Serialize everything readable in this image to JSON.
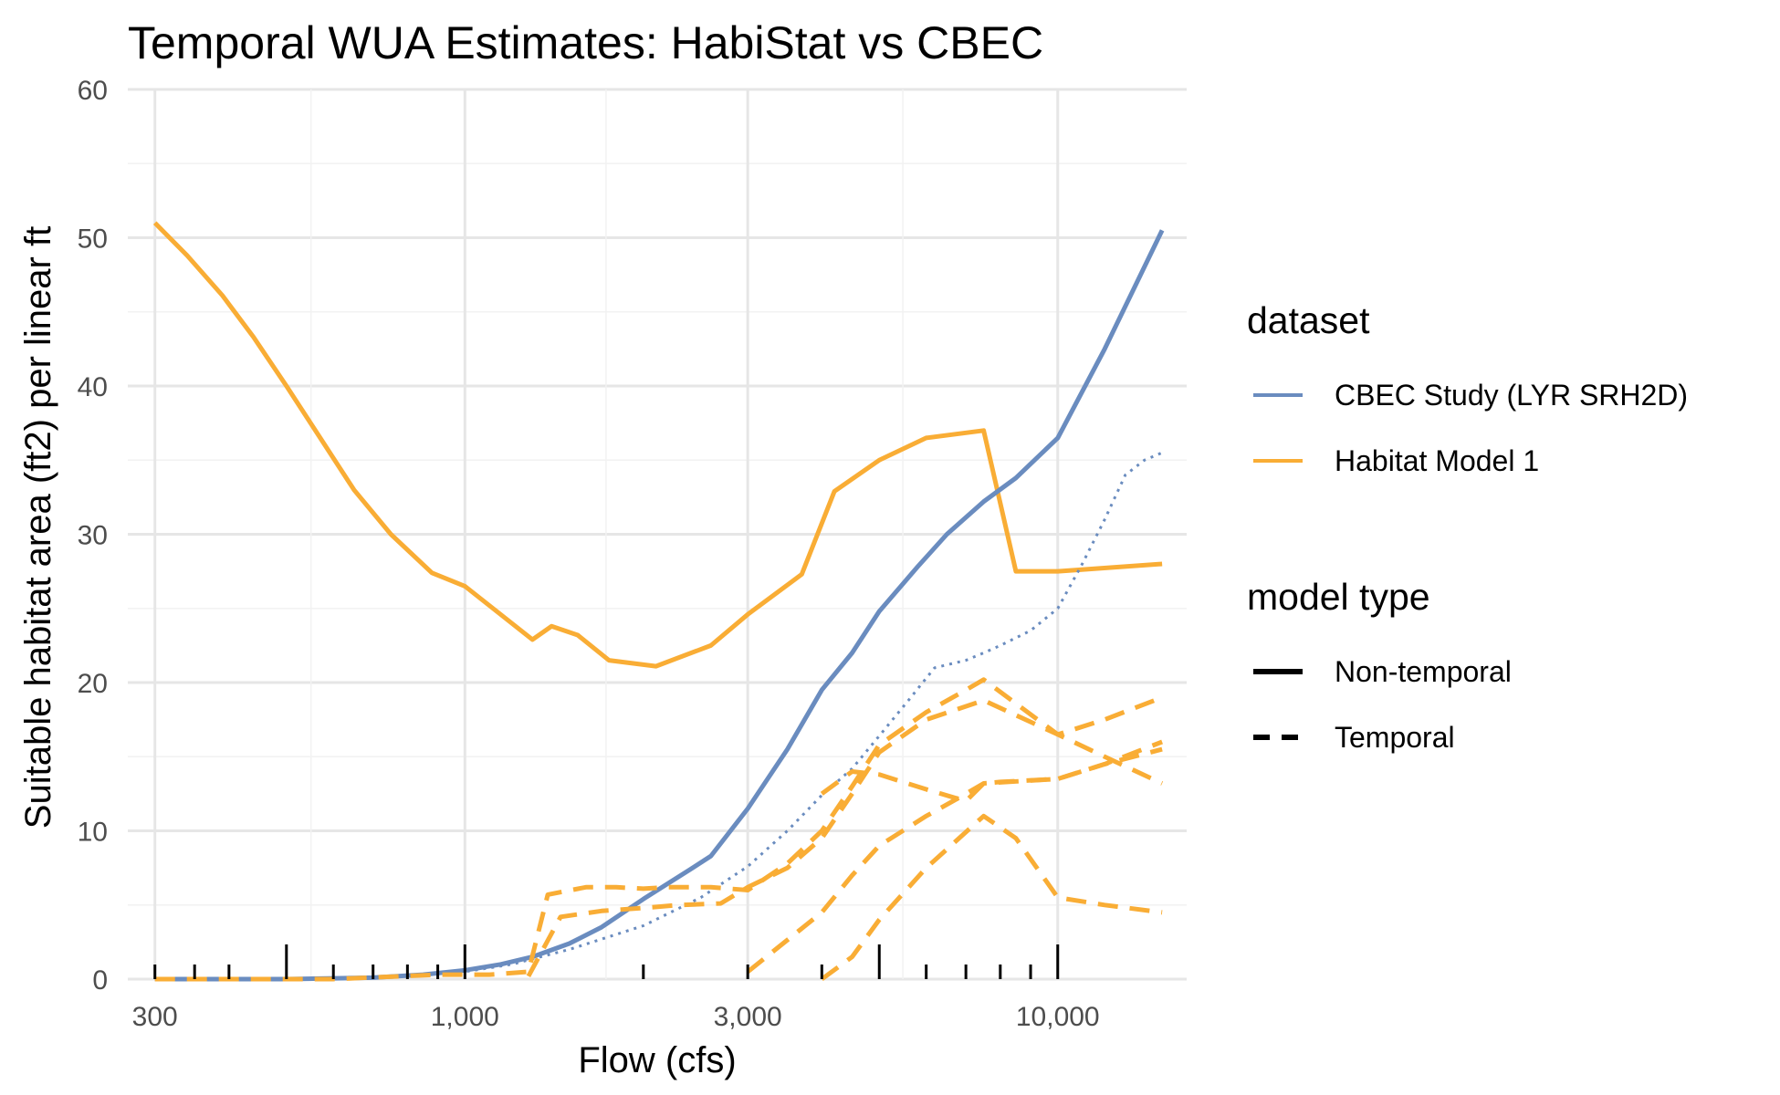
{
  "chart_data": {
    "type": "line",
    "title": "Temporal WUA Estimates: HabiStat vs CBEC",
    "xlabel": "Flow (cfs)",
    "ylabel": "Suitable habitat area (ft2) per linear ft",
    "x_scale": "log10",
    "xlim": [
      270,
      16500
    ],
    "ylim": [
      0,
      60
    ],
    "x_ticks": [
      300,
      1000,
      3000,
      10000
    ],
    "x_tick_labels": [
      "300",
      "1,000",
      "3,000",
      "10,000"
    ],
    "y_ticks": [
      0,
      10,
      20,
      30,
      40,
      50,
      60
    ],
    "y_tick_labels": [
      "0",
      "10",
      "20",
      "30",
      "40",
      "50",
      "60"
    ],
    "grid": true,
    "legend_position": "right",
    "legend": {
      "dataset_title": "dataset",
      "dataset_items": [
        {
          "label": "CBEC Study (LYR SRH2D)",
          "color": "#6a8cbf"
        },
        {
          "label": "Habitat Model 1",
          "color": "#f9ad35"
        }
      ],
      "modeltype_title": "model type",
      "modeltype_items": [
        {
          "label": "Non-temporal",
          "dash": "solid"
        },
        {
          "label": "Temporal",
          "dash": "dashed"
        }
      ]
    },
    "colors": {
      "cbec": "#6a8cbf",
      "habitat": "#f9ad35",
      "rug": "#000000"
    },
    "series": [
      {
        "name": "Habitat Model 1",
        "model_type": "Non-temporal",
        "color": "#f9ad35",
        "x": [
          300,
          340,
          390,
          440,
          500,
          570,
          650,
          750,
          880,
          1000,
          1300,
          1400,
          1550,
          1750,
          2100,
          2600,
          3000,
          3700,
          4200,
          5000,
          6000,
          7500,
          8500,
          10000,
          15000
        ],
        "y": [
          51,
          48.8,
          46.1,
          43.3,
          40,
          36.5,
          33,
          30,
          27.4,
          26.5,
          22.9,
          23.8,
          23.2,
          21.5,
          21.1,
          22.5,
          24.6,
          27.3,
          32.9,
          35,
          36.5,
          37,
          27.5,
          27.5,
          28
        ]
      },
      {
        "name": "CBEC Study (LYR SRH2D)",
        "model_type": "Non-temporal",
        "color": "#6a8cbf",
        "x": [
          300,
          500,
          700,
          850,
          1000,
          1150,
          1300,
          1500,
          1700,
          2000,
          2400,
          2600,
          3000,
          3500,
          4000,
          4500,
          5000,
          5800,
          6500,
          7500,
          8500,
          10000,
          12000,
          15000
        ],
        "y": [
          0,
          0,
          0.1,
          0.3,
          0.6,
          1,
          1.5,
          2.4,
          3.5,
          5.4,
          7.4,
          8.3,
          11.5,
          15.5,
          19.5,
          22,
          24.8,
          27.8,
          30,
          32.2,
          33.8,
          36.5,
          42.5,
          50.5
        ]
      },
      {
        "name": "CBEC Study (LYR SRH2D)",
        "model_type": "Temporal",
        "color": "#6a8cbf",
        "x": [
          500,
          800,
          1000,
          1200,
          1500,
          2000,
          2500,
          3000,
          3500,
          4000,
          4500,
          5000,
          5600,
          6200,
          7000,
          7500,
          8000,
          9000,
          10000,
          11000,
          12000,
          13000,
          14000,
          15000
        ],
        "y": [
          0,
          0.2,
          0.5,
          1,
          2,
          3.6,
          5.5,
          7.6,
          10,
          12.4,
          14.2,
          16.4,
          18.8,
          21,
          21.5,
          22,
          22.5,
          23.5,
          25,
          28,
          31,
          34,
          35,
          35.5
        ]
      },
      {
        "name": "Habitat Model 1",
        "model_type": "Temporal",
        "color": "#f9ad35",
        "x": [
          300,
          600,
          900,
          1100,
          1280,
          1380,
          1600,
          1800,
          2000,
          2200,
          2600,
          3000,
          3500,
          4000,
          4500,
          5000,
          6000,
          7000,
          7500,
          10000,
          12000,
          15000
        ],
        "y": [
          0,
          0,
          0.3,
          0.3,
          0.5,
          5.7,
          6.2,
          6.2,
          6.1,
          6.2,
          6.2,
          6,
          7.8,
          10,
          13,
          15.8,
          18,
          19.5,
          20.2,
          16.5,
          17.5,
          19
        ]
      },
      {
        "name": "Habitat Model 1",
        "model_type": "Temporal",
        "color": "#f9ad35",
        "x": [
          1280,
          1450,
          1700,
          2000,
          2300,
          2700,
          3000,
          3500,
          4000,
          4500,
          5000,
          6000,
          7500,
          10000,
          12000,
          15000
        ],
        "y": [
          0.2,
          4.2,
          4.6,
          4.8,
          5,
          5.1,
          6.2,
          7.5,
          9.5,
          12.5,
          15.3,
          17.5,
          18.8,
          16.5,
          15,
          13.2
        ]
      },
      {
        "name": "Habitat Model 1",
        "model_type": "Temporal",
        "color": "#f9ad35",
        "x": [
          3000,
          4000,
          4500,
          5000,
          6000,
          7000,
          7500,
          10000,
          12000,
          15000
        ],
        "y": [
          0.5,
          4.5,
          7,
          9,
          11,
          12.5,
          13.2,
          13.5,
          14.5,
          16
        ]
      },
      {
        "name": "Habitat Model 1",
        "model_type": "Temporal",
        "color": "#f9ad35",
        "x": [
          4000,
          4500,
          5000,
          6000,
          7500,
          8500,
          10000,
          12000,
          15000
        ],
        "y": [
          0,
          1.5,
          4,
          7.5,
          11,
          9.5,
          5.5,
          5,
          4.5
        ]
      },
      {
        "name": "Habitat Model 1",
        "model_type": "Temporal",
        "color": "#f9ad35",
        "x": [
          4000,
          4500,
          5000,
          6000,
          7000,
          7500,
          8000,
          10000,
          12000,
          15000
        ],
        "y": [
          12.5,
          14,
          13.8,
          12.8,
          12,
          13.2,
          13.3,
          13.5,
          14.5,
          15.5
        ]
      }
    ],
    "rug_x": [
      300,
      350,
      400,
      500,
      600,
      700,
      800,
      900,
      1000,
      2000,
      3000,
      4000,
      5000,
      6000,
      7000,
      8000,
      9000,
      10000
    ],
    "rug_tall_x": [
      500,
      1000,
      5000,
      10000
    ]
  }
}
